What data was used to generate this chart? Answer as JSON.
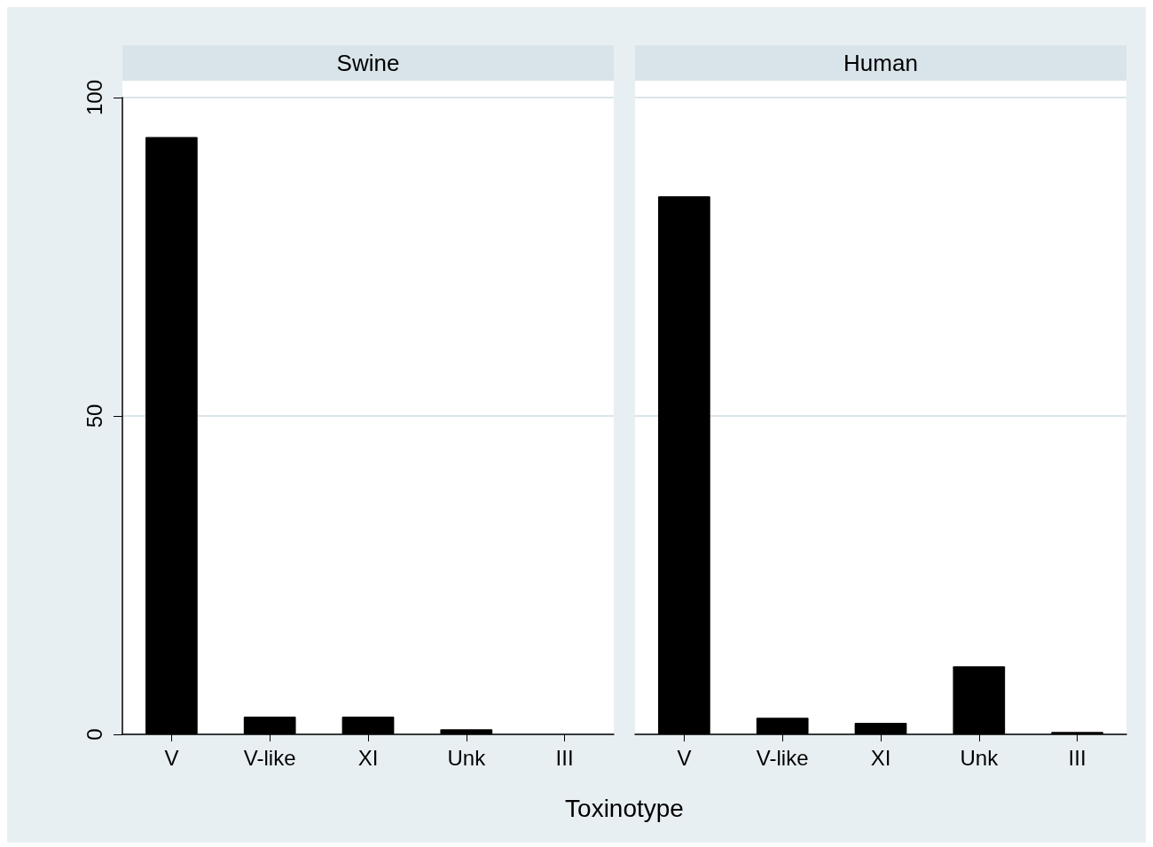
{
  "chart_data": [
    {
      "type": "bar",
      "title": "Swine",
      "xlabel": "Toxinotype",
      "categories": [
        "V",
        "V-like",
        "XI",
        "Unk",
        "III"
      ],
      "values": [
        93.8,
        2.8,
        2.8,
        0.8,
        0
      ],
      "color": "#000000",
      "ylim": [
        0,
        100
      ],
      "yticks": [
        0,
        50,
        100
      ],
      "grid": "y"
    },
    {
      "type": "bar",
      "title": "Human",
      "categories": [
        "V",
        "V-like",
        "XI",
        "Unk",
        "III"
      ],
      "values": [
        84.5,
        2.6,
        1.8,
        10.7,
        0.4
      ],
      "color": "#000000",
      "ylim": [
        0,
        100
      ],
      "yticks": [
        0,
        50,
        100
      ],
      "grid": "y",
      "tick_labels": "x"
    }
  ]
}
